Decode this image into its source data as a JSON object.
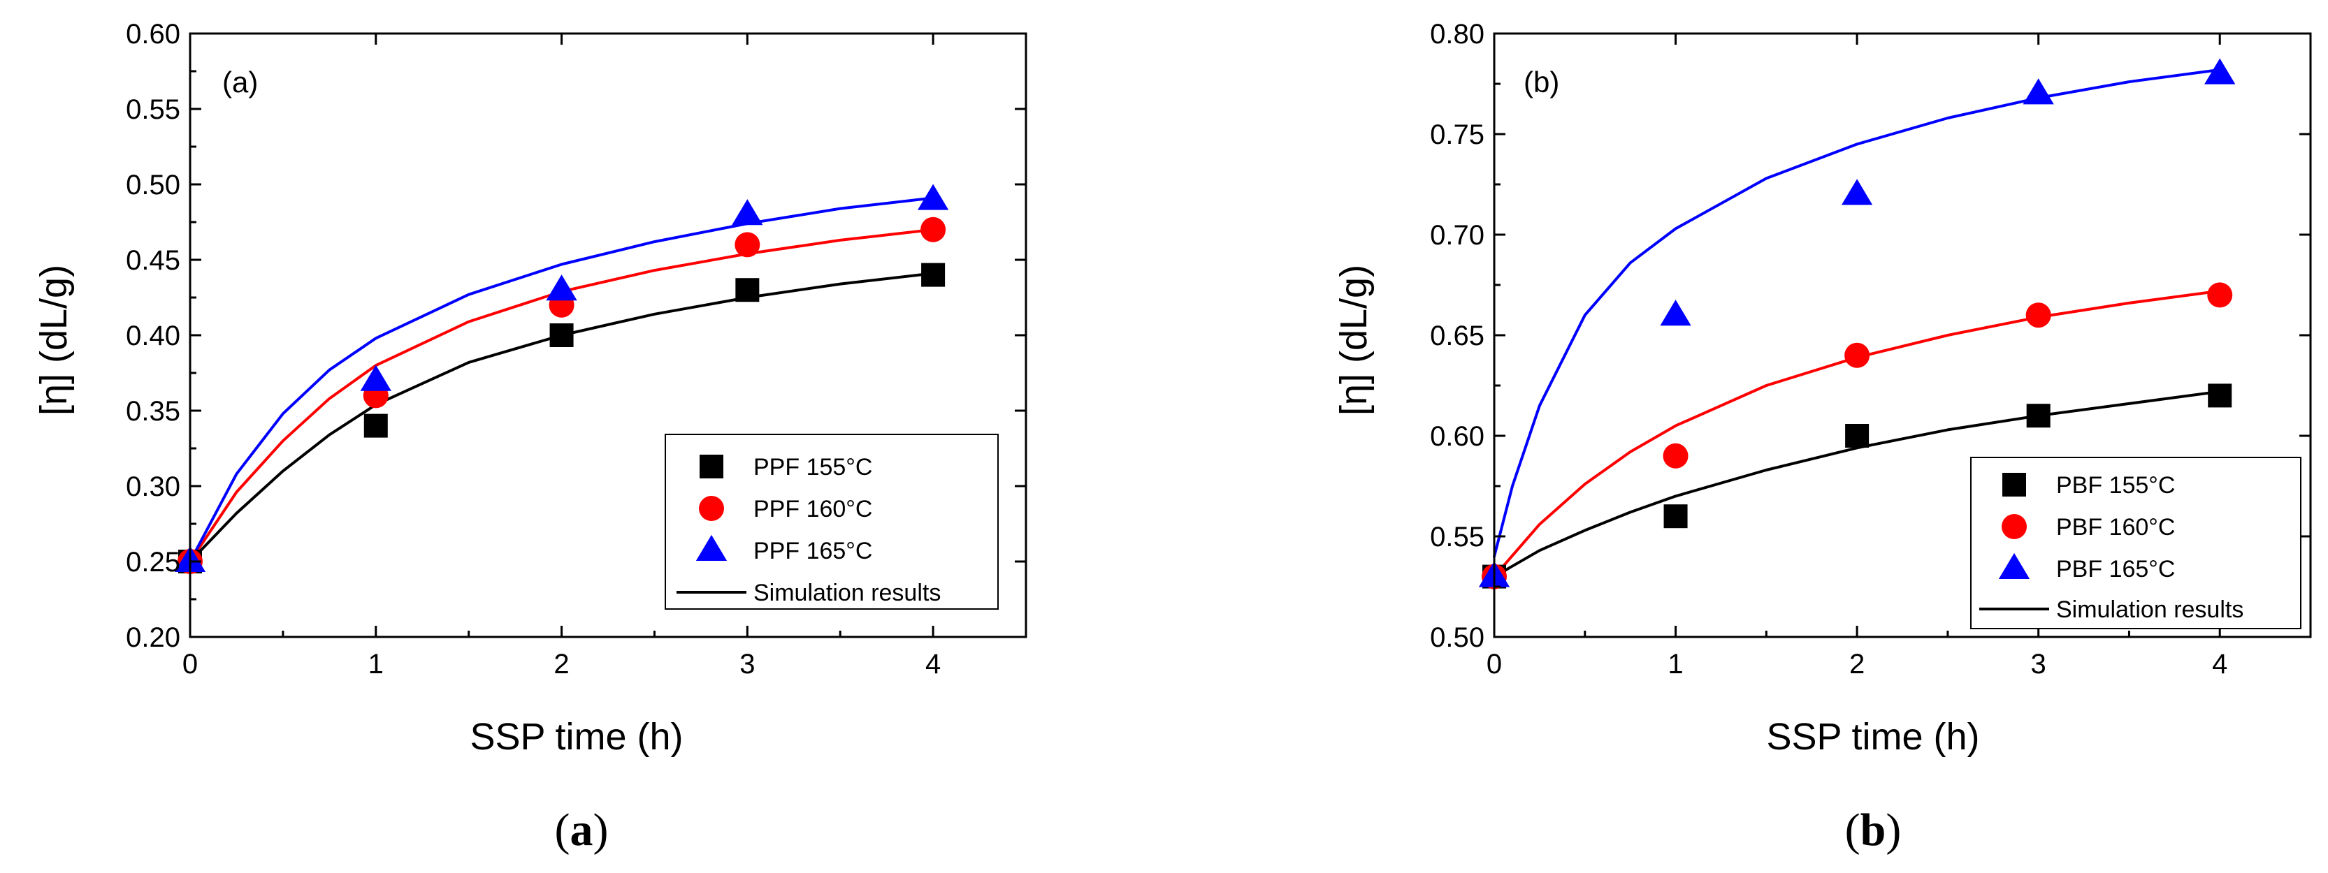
{
  "chart_data": [
    {
      "type": "scatter",
      "panel_label": "(a)",
      "caption": {
        "open": "(",
        "letter": "a",
        "close": ")"
      },
      "xlabel": "SSP time (h)",
      "ylabel": "[η] (dL/g)",
      "xlim": [
        0,
        4.5
      ],
      "ylim": [
        0.2,
        0.6
      ],
      "xticks": [
        "0",
        "1",
        "2",
        "3",
        "4"
      ],
      "yticks": [
        "0.20",
        "0.25",
        "0.30",
        "0.35",
        "0.40",
        "0.45",
        "0.50",
        "0.55",
        "0.60"
      ],
      "legend_position": "bottom-right",
      "simulation_label": "Simulation results",
      "series": [
        {
          "name": "PPF 155°C",
          "marker": "square",
          "color": "#000000",
          "x": [
            0,
            1,
            2,
            3,
            4
          ],
          "y": [
            0.25,
            0.34,
            0.4,
            0.43,
            0.44
          ],
          "curve": {
            "x": [
              0,
              0.25,
              0.5,
              0.75,
              1,
              1.5,
              2,
              2.5,
              3,
              3.5,
              4
            ],
            "y": [
              0.25,
              0.282,
              0.31,
              0.334,
              0.354,
              0.382,
              0.4,
              0.414,
              0.425,
              0.434,
              0.441
            ]
          }
        },
        {
          "name": "PPF 160°C",
          "marker": "circle",
          "color": "#ff0000",
          "x": [
            0,
            1,
            2,
            3,
            4
          ],
          "y": [
            0.25,
            0.36,
            0.42,
            0.46,
            0.47
          ],
          "curve": {
            "x": [
              0,
              0.25,
              0.5,
              0.75,
              1,
              1.5,
              2,
              2.5,
              3,
              3.5,
              4
            ],
            "y": [
              0.25,
              0.296,
              0.33,
              0.358,
              0.38,
              0.409,
              0.429,
              0.443,
              0.454,
              0.463,
              0.47
            ]
          }
        },
        {
          "name": "PPF 165°C",
          "marker": "triangle",
          "color": "#0000ff",
          "x": [
            0,
            1,
            2,
            3,
            4
          ],
          "y": [
            0.25,
            0.37,
            0.43,
            0.48,
            0.49
          ],
          "curve": {
            "x": [
              0,
              0.25,
              0.5,
              0.75,
              1,
              1.5,
              2,
              2.5,
              3,
              3.5,
              4
            ],
            "y": [
              0.25,
              0.308,
              0.348,
              0.377,
              0.398,
              0.427,
              0.447,
              0.462,
              0.474,
              0.484,
              0.491
            ]
          }
        }
      ]
    },
    {
      "type": "scatter",
      "panel_label": "(b)",
      "caption": {
        "open": "(",
        "letter": "b",
        "close": ")"
      },
      "xlabel": "SSP time (h)",
      "ylabel": "[η] (dL/g)",
      "xlim": [
        0,
        4.5
      ],
      "ylim": [
        0.5,
        0.8
      ],
      "xticks": [
        "0",
        "1",
        "2",
        "3",
        "4"
      ],
      "yticks": [
        "0.50",
        "0.55",
        "0.60",
        "0.65",
        "0.70",
        "0.75",
        "0.80"
      ],
      "legend_position": "bottom-right",
      "simulation_label": "Simulation results",
      "series": [
        {
          "name": "PBF 155°C",
          "marker": "square",
          "color": "#000000",
          "x": [
            0,
            1,
            2,
            3,
            4
          ],
          "y": [
            0.53,
            0.56,
            0.6,
            0.61,
            0.62
          ],
          "curve": {
            "x": [
              0,
              0.25,
              0.5,
              0.75,
              1,
              1.5,
              2,
              2.5,
              3,
              3.5,
              4
            ],
            "y": [
              0.53,
              0.543,
              0.553,
              0.562,
              0.57,
              0.583,
              0.594,
              0.603,
              0.61,
              0.616,
              0.622
            ]
          }
        },
        {
          "name": "PBF 160°C",
          "marker": "circle",
          "color": "#ff0000",
          "x": [
            0,
            1,
            2,
            3,
            4
          ],
          "y": [
            0.53,
            0.59,
            0.64,
            0.66,
            0.67
          ],
          "curve": {
            "x": [
              0,
              0.25,
              0.5,
              0.75,
              1,
              1.5,
              2,
              2.5,
              3,
              3.5,
              4
            ],
            "y": [
              0.53,
              0.556,
              0.576,
              0.592,
              0.605,
              0.625,
              0.639,
              0.65,
              0.659,
              0.666,
              0.672
            ]
          }
        },
        {
          "name": "PBF 165°C",
          "marker": "triangle",
          "color": "#0000ff",
          "x": [
            0,
            1,
            2,
            3,
            4
          ],
          "y": [
            0.53,
            0.66,
            0.72,
            0.77,
            0.78
          ],
          "curve": {
            "x": [
              0,
              0.1,
              0.25,
              0.5,
              0.75,
              1,
              1.5,
              2,
              2.5,
              3,
              3.5,
              4
            ],
            "y": [
              0.54,
              0.575,
              0.615,
              0.66,
              0.686,
              0.703,
              0.728,
              0.745,
              0.758,
              0.768,
              0.776,
              0.782
            ]
          }
        }
      ]
    }
  ]
}
